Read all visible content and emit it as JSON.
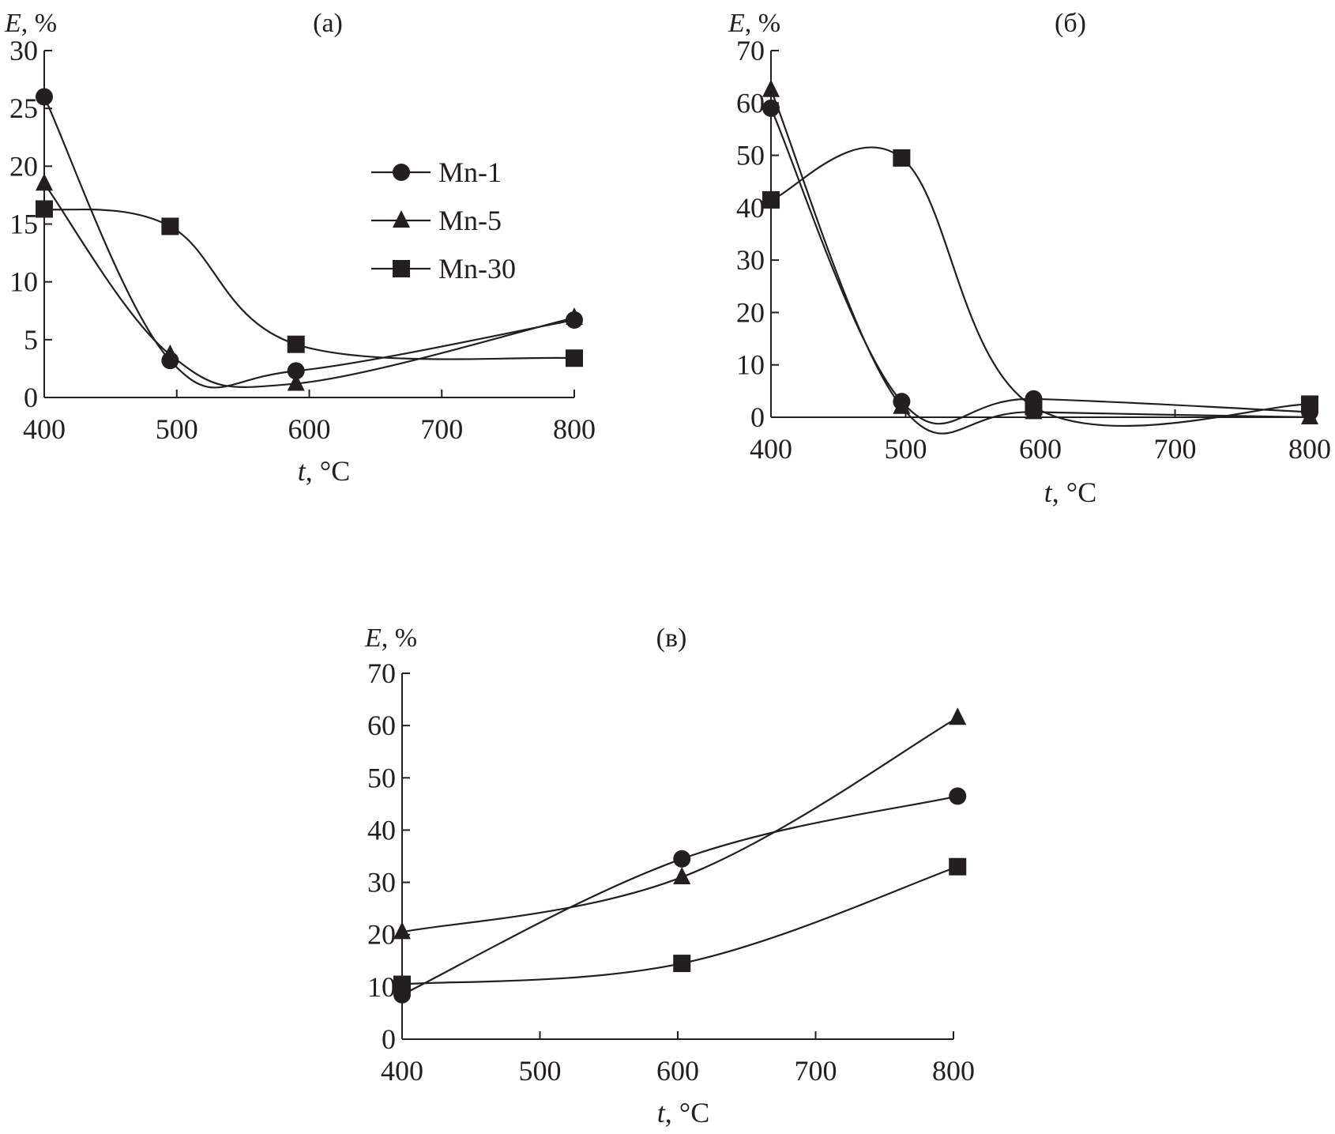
{
  "chart_data": [
    {
      "type": "line",
      "title": "(а)",
      "xlabel_italic": "t",
      "xlabel_rest": ", °C",
      "ylabel_italic": "E",
      "ylabel_rest": ", %",
      "xlim": [
        400,
        800
      ],
      "ylim": [
        0,
        30
      ],
      "xticks": [
        400,
        500,
        600,
        700,
        800
      ],
      "yticks": [
        0,
        5,
        10,
        15,
        20,
        25,
        30
      ],
      "grid": false,
      "legend": "right",
      "series": [
        {
          "name": "Mn-1",
          "marker": "circle",
          "x": [
            400,
            495,
            590,
            800
          ],
          "y": [
            26,
            3.2,
            2.3,
            6.7
          ]
        },
        {
          "name": "Mn-5",
          "marker": "triangle",
          "x": [
            400,
            495,
            590,
            800
          ],
          "y": [
            18.5,
            3.7,
            1.2,
            6.9
          ]
        },
        {
          "name": "Mn-30",
          "marker": "square",
          "x": [
            400,
            495,
            590,
            800
          ],
          "y": [
            16.3,
            14.8,
            4.6,
            3.4
          ]
        }
      ]
    },
    {
      "type": "line",
      "title": "(б)",
      "xlabel_italic": "t",
      "xlabel_rest": ", °C",
      "ylabel_italic": "E",
      "ylabel_rest": ", %",
      "xlim": [
        400,
        800
      ],
      "ylim": [
        0,
        70
      ],
      "xticks": [
        400,
        500,
        600,
        700,
        800
      ],
      "yticks": [
        0,
        10,
        20,
        30,
        40,
        50,
        60,
        70
      ],
      "grid": false,
      "series": [
        {
          "name": "Mn-1",
          "marker": "circle",
          "x": [
            400,
            497,
            595,
            800
          ],
          "y": [
            59,
            3,
            3.5,
            1
          ]
        },
        {
          "name": "Mn-5",
          "marker": "triangle",
          "x": [
            400,
            497,
            595,
            800
          ],
          "y": [
            62.5,
            2,
            1,
            0
          ]
        },
        {
          "name": "Mn-30",
          "marker": "square",
          "x": [
            400,
            497,
            595,
            800
          ],
          "y": [
            41.5,
            49.5,
            2,
            2.5
          ]
        }
      ]
    },
    {
      "type": "line",
      "title": "(в)",
      "xlabel_italic": "t",
      "xlabel_rest": ", °C",
      "ylabel_italic": "E",
      "ylabel_rest": ", %",
      "xlim": [
        400,
        800
      ],
      "ylim": [
        0,
        70
      ],
      "xticks": [
        400,
        500,
        600,
        700,
        800
      ],
      "yticks": [
        0,
        10,
        20,
        30,
        40,
        50,
        60,
        70
      ],
      "grid": false,
      "series": [
        {
          "name": "Mn-1",
          "marker": "circle",
          "x": [
            400,
            603,
            803
          ],
          "y": [
            8.5,
            34.5,
            46.5
          ]
        },
        {
          "name": "Mn-5",
          "marker": "triangle",
          "x": [
            400,
            603,
            803
          ],
          "y": [
            20.5,
            31,
            61.5
          ]
        },
        {
          "name": "Mn-30",
          "marker": "square",
          "x": [
            400,
            603,
            803
          ],
          "y": [
            10.5,
            14.5,
            33
          ]
        }
      ]
    }
  ]
}
